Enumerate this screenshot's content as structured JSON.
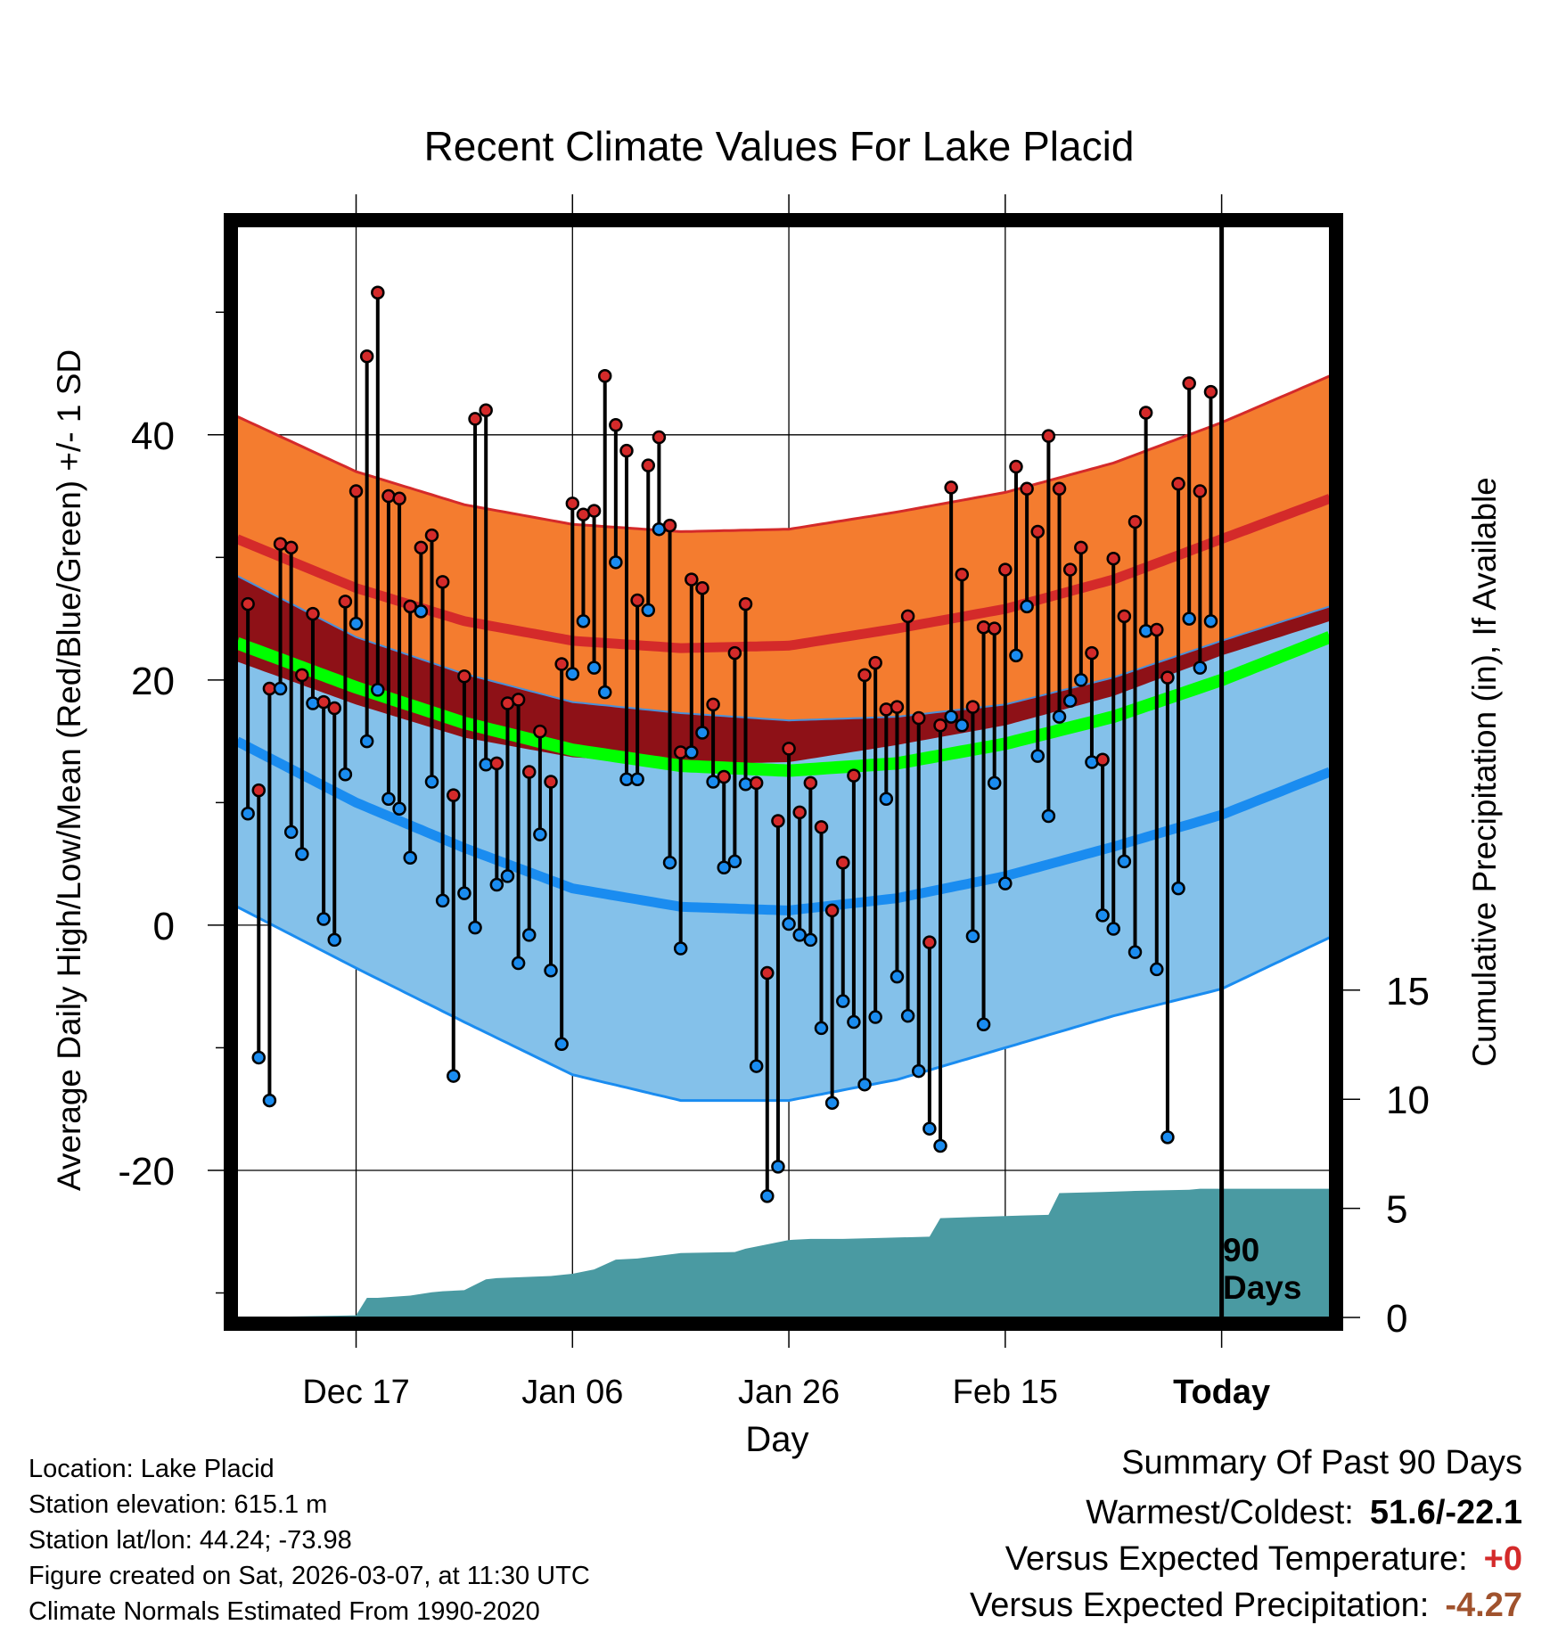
{
  "chart_data": {
    "type": "line",
    "title": "Recent Climate Values For Lake Placid",
    "xlabel": "Day",
    "ylabel": "Average Daily High/Low/Mean (Red/Blue/Green) +/- 1 SD",
    "y2label": "Cumulative Precipitation (in), If Available",
    "x_tick_labels": [
      "Dec 17",
      "Jan 06",
      "Jan 26",
      "Feb 15",
      "Today"
    ],
    "x_tick_days": [
      10,
      30,
      50,
      70,
      90
    ],
    "x_range": [
      -1,
      100
    ],
    "ylim": [
      -32,
      57
    ],
    "y_ticks": [
      -20,
      0,
      20,
      40
    ],
    "y_tick_labels": [
      "-20",
      "0",
      "20",
      "40"
    ],
    "y2_range": [
      0,
      50
    ],
    "y2_ticks": [
      0,
      5,
      10,
      15
    ],
    "y2_tick_labels": [
      "0",
      "5",
      "10",
      "15"
    ],
    "today_marker_day": 90,
    "today_label_line1": "90",
    "today_label_line2": "Days",
    "normal_days": [
      -1,
      10,
      20,
      30,
      40,
      50,
      60,
      70,
      80,
      90,
      100
    ],
    "normal_high": [
      31.5,
      27.5,
      24.8,
      23.2,
      22.6,
      22.8,
      24.2,
      25.8,
      28.2,
      31.5,
      34.8
    ],
    "normal_high_sd": [
      10.0,
      9.5,
      9.5,
      9.5,
      9.5,
      9.5,
      9.5,
      9.5,
      9.5,
      9.5,
      10.0
    ],
    "normal_mean": [
      23.0,
      19.4,
      16.5,
      14.3,
      13.0,
      12.6,
      13.2,
      14.8,
      17.0,
      20.0,
      23.5
    ],
    "normal_low": [
      15.0,
      10.0,
      6.3,
      3.0,
      1.5,
      1.2,
      2.2,
      4.0,
      6.4,
      9.0,
      12.5
    ],
    "normal_low_sd": [
      13.5,
      13.5,
      14.2,
      15.2,
      15.8,
      15.5,
      14.8,
      14.0,
      13.8,
      14.2,
      13.5
    ],
    "daily_high": [
      26.2,
      11.0,
      19.3,
      31.1,
      30.8,
      20.4,
      25.4,
      18.2,
      17.7,
      26.4,
      35.4,
      46.4,
      51.6,
      35.0,
      34.8,
      26.0,
      30.8,
      31.8,
      28.0,
      10.6,
      20.3,
      41.3,
      42.0,
      13.2,
      18.1,
      18.4,
      12.5,
      15.8,
      11.7,
      21.3,
      34.4,
      33.5,
      33.8,
      44.8,
      40.8,
      38.7,
      26.5,
      37.5,
      39.8,
      32.6,
      14.1,
      28.2,
      27.5,
      18.0,
      12.1,
      22.2,
      26.2,
      11.6,
      -3.9,
      8.5,
      14.4,
      9.2,
      11.6,
      8.0,
      1.2,
      5.1,
      12.2,
      20.4,
      21.4,
      17.6,
      17.8,
      25.2,
      16.9,
      -1.4,
      16.3,
      35.7,
      28.6,
      17.8,
      24.3,
      24.2,
      29.0,
      37.4,
      35.6,
      32.1,
      39.9,
      35.6,
      29.0,
      30.8,
      22.2,
      13.5,
      29.9,
      25.2,
      32.9,
      41.8,
      24.1,
      20.2,
      36.0,
      44.2,
      35.4,
      43.5
    ],
    "daily_low": [
      9.1,
      -10.8,
      -14.3,
      19.3,
      7.6,
      5.8,
      18.1,
      0.5,
      -1.2,
      12.3,
      24.6,
      15.0,
      19.2,
      10.3,
      9.5,
      5.5,
      25.6,
      11.7,
      2.0,
      -12.3,
      2.6,
      -0.2,
      13.1,
      3.3,
      4.0,
      -3.1,
      -0.8,
      7.4,
      -3.7,
      -9.7,
      20.5,
      24.8,
      21.0,
      19.0,
      29.6,
      11.9,
      11.9,
      25.7,
      32.3,
      5.1,
      -1.9,
      14.1,
      15.7,
      11.7,
      4.7,
      5.2,
      11.5,
      -11.5,
      -22.1,
      -19.7,
      0.1,
      -0.8,
      -1.2,
      -8.4,
      -14.5,
      -6.2,
      -7.9,
      -13.0,
      -7.5,
      10.3,
      -4.2,
      -7.4,
      -11.9,
      -16.6,
      -18.0,
      17.0,
      16.3,
      -0.9,
      -8.1,
      11.6,
      3.4,
      22.0,
      26.0,
      13.8,
      8.9,
      17.0,
      18.3,
      20.0,
      13.3,
      0.8,
      -0.3,
      5.2,
      -2.2,
      24.0,
      -3.6,
      -17.3,
      3.0,
      25.0,
      21.0,
      24.8
    ],
    "cumulative_precip_days": [
      -1,
      5,
      10,
      11,
      12,
      15,
      17,
      18,
      20,
      22,
      23,
      28,
      30,
      32,
      34,
      36,
      40,
      45,
      46,
      50,
      52,
      55,
      59,
      63,
      64,
      67,
      70,
      74,
      75,
      79,
      82,
      84,
      87,
      88,
      90,
      100
    ],
    "cumulative_precip": [
      0.0,
      0.05,
      0.1,
      0.9,
      0.9,
      1.0,
      1.15,
      1.2,
      1.25,
      1.75,
      1.8,
      1.9,
      2.0,
      2.2,
      2.65,
      2.7,
      2.95,
      3.0,
      3.15,
      3.55,
      3.6,
      3.6,
      3.65,
      3.7,
      4.55,
      4.6,
      4.65,
      4.7,
      5.7,
      5.75,
      5.8,
      5.82,
      5.85,
      5.9,
      5.9,
      5.9
    ]
  },
  "info": {
    "location": "Location: Lake Placid",
    "elevation": "Station elevation: 615.1 m",
    "latlon": "Station lat/lon: 44.24; -73.98",
    "created": "Figure created on Sat, 2026-03-07, at 11:30 UTC",
    "normals": "Climate Normals Estimated From 1990-2020"
  },
  "summary": {
    "heading": "Summary Of Past 90 Days",
    "warmest_coldest_label": "Warmest/Coldest:",
    "warmest_coldest_value": "51.6/-22.1",
    "temp_label": "Versus Expected Temperature:",
    "temp_value": "+0",
    "precip_label": "Versus Expected Precipitation:",
    "precip_value": "-4.27"
  },
  "colors": {
    "high_band": "#f47c2f",
    "high_band_edge": "#d42a2a",
    "high_mean": "#d42a2a",
    "overlap_band": "#8e1117",
    "low_band": "#84c1ea",
    "low_band_edge": "#1a8cf0",
    "low_mean": "#1a8cf0",
    "mean_line": "#00ff00",
    "precip_fill": "#4a9aa2",
    "high_dot": "#d42a2a",
    "low_dot": "#1a8cf0",
    "temp_value": "#d42a2a",
    "precip_value": "#a0522d"
  }
}
